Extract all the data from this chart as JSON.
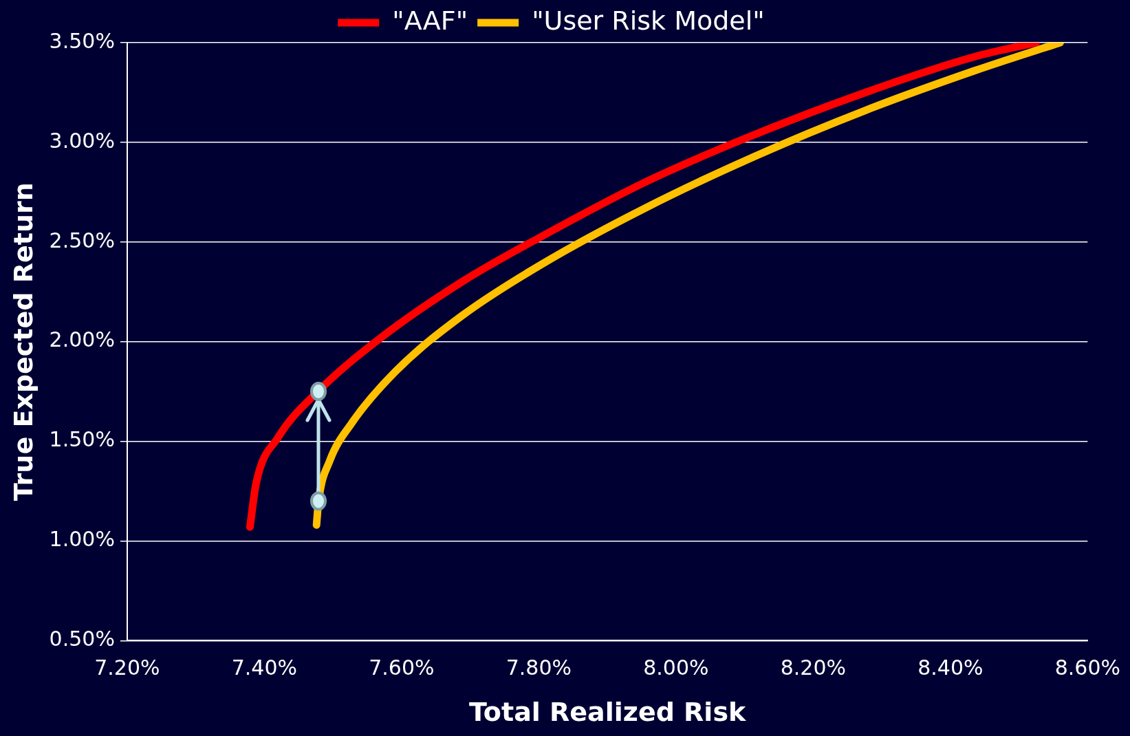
{
  "chart_data": {
    "type": "line",
    "xlabel": "Total Realized Risk",
    "ylabel": "True Expected Return",
    "xlim": [
      7.2,
      8.6
    ],
    "ylim": [
      0.5,
      3.5
    ],
    "xticks": [
      {
        "value": 7.2,
        "label": "7.20%"
      },
      {
        "value": 7.4,
        "label": "7.40%"
      },
      {
        "value": 7.6,
        "label": "7.60%"
      },
      {
        "value": 7.8,
        "label": "7.80%"
      },
      {
        "value": 8.0,
        "label": "8.00%"
      },
      {
        "value": 8.2,
        "label": "8.20%"
      },
      {
        "value": 8.4,
        "label": "8.40%"
      },
      {
        "value": 8.6,
        "label": "8.60%"
      }
    ],
    "yticks": [
      {
        "value": 0.5,
        "label": "0.50%"
      },
      {
        "value": 1.0,
        "label": "1.00%"
      },
      {
        "value": 1.5,
        "label": "1.50%"
      },
      {
        "value": 2.0,
        "label": "2.00%"
      },
      {
        "value": 2.5,
        "label": "2.50%"
      },
      {
        "value": 3.0,
        "label": "3.00%"
      },
      {
        "value": 3.5,
        "label": "3.50%"
      }
    ],
    "grid": "y",
    "legend": "top",
    "marker": "none",
    "line_style": "solid",
    "series": [
      {
        "name": "\"AAF\"",
        "color": "#ff0000",
        "x": [
          7.379,
          7.388,
          7.42,
          7.478,
          7.57,
          7.688,
          7.8,
          7.955,
          8.094,
          8.276,
          8.436,
          8.525
        ],
        "values": [
          1.07,
          1.29,
          1.52,
          1.75,
          2.02,
          2.3,
          2.52,
          2.8,
          3.01,
          3.25,
          3.43,
          3.5
        ]
      },
      {
        "name": "\"User Risk Model\"",
        "color": "#ffc000",
        "x": [
          7.476,
          7.479,
          7.495,
          7.527,
          7.591,
          7.688,
          7.805,
          7.955,
          8.115,
          8.276,
          8.436,
          8.56
        ],
        "values": [
          1.08,
          1.2,
          1.4,
          1.59,
          1.85,
          2.13,
          2.39,
          2.67,
          2.93,
          3.16,
          3.36,
          3.5
        ]
      }
    ]
  }
}
